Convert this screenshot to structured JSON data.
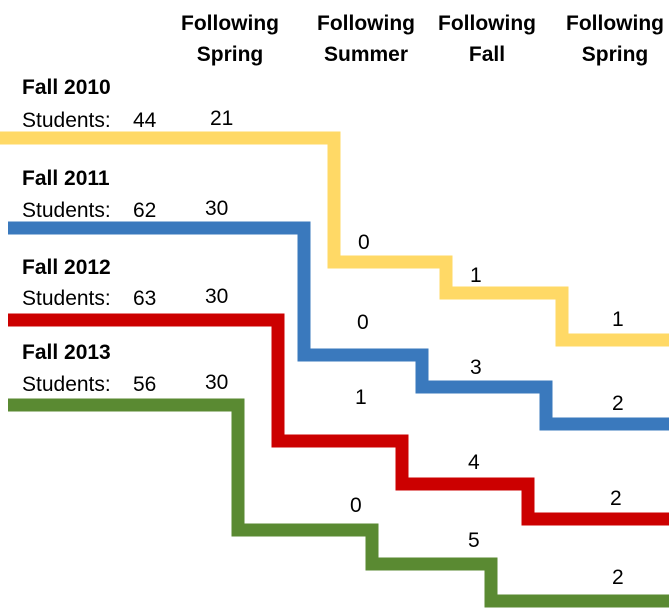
{
  "headers": [
    "Following\nSpring",
    "Following\nSummer",
    "Following\nFall",
    "Following\nSpring"
  ],
  "cohorts": [
    {
      "title": "Fall 2010",
      "students_label": "Students:",
      "students": "44",
      "values": [
        "21",
        "0",
        "1",
        "1"
      ],
      "color": "#ffd966"
    },
    {
      "title": "Fall 2011",
      "students_label": "Students:",
      "students": "62",
      "values": [
        "30",
        "0",
        "3",
        "2"
      ],
      "color": "#3a79bd"
    },
    {
      "title": "Fall 2012",
      "students_label": "Students:",
      "students": "63",
      "values": [
        "30",
        "1",
        "4",
        "2"
      ],
      "color": "#cc0000"
    },
    {
      "title": "Fall 2013",
      "students_label": "Students:",
      "students": "56",
      "values": [
        "30",
        "0",
        "5",
        "2"
      ],
      "color": "#5a8a32"
    }
  ]
}
